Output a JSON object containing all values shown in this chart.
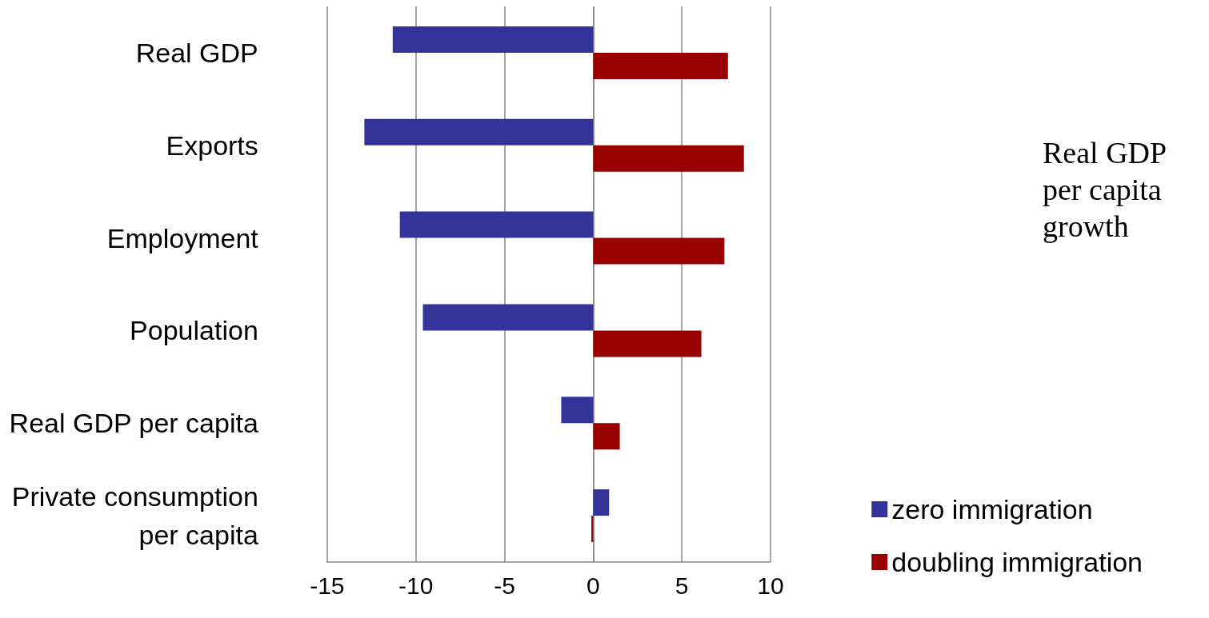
{
  "chart_data": {
    "type": "bar",
    "orientation": "horizontal",
    "categories": [
      "Real GDP",
      "Exports",
      "Employment",
      "Population",
      "Real GDP per capita",
      "Private consumption\nper capita"
    ],
    "series": [
      {
        "name": "zero immigration",
        "color": "#333399",
        "values": [
          -11.3,
          -12.9,
          -10.9,
          -9.6,
          -1.8,
          0.9
        ]
      },
      {
        "name": "doubling immigration",
        "color": "#990000",
        "values": [
          7.6,
          8.5,
          7.4,
          6.1,
          1.5,
          -0.1
        ]
      }
    ],
    "xlim": [
      -15,
      10
    ],
    "xticks": [
      -15,
      -10,
      -5,
      0,
      5,
      10
    ],
    "grid": "x",
    "legend": "bottom right",
    "annotations": [
      "Real GDP per capita growth"
    ]
  }
}
